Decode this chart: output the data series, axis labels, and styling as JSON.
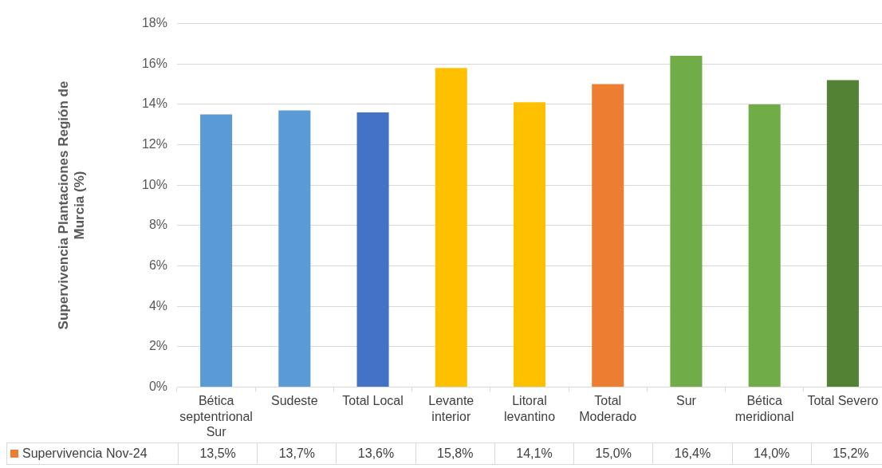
{
  "chart_data": {
    "type": "bar",
    "ylabel": "Supervivencia Plantaciones Región de Murcia (%)",
    "categories": [
      "Bética septentrional Sur",
      "Sudeste",
      "Total Local",
      "Levante interior",
      "Litoral levantino",
      "Total Moderado",
      "Sur",
      "Bética meridional",
      "Total Severo"
    ],
    "series": [
      {
        "name": "Supervivencia Nov-24",
        "color": "#ed7d31",
        "colors": [
          "#5b9bd5",
          "#5b9bd5",
          "#4472c4",
          "#ffc000",
          "#ffc000",
          "#ed7d31",
          "#70ad47",
          "#70ad47",
          "#548235"
        ],
        "values": [
          13.5,
          13.7,
          13.6,
          15.8,
          14.1,
          15.0,
          16.4,
          14.0,
          15.2
        ],
        "value_labels": [
          "13,5%",
          "13,7%",
          "13,6%",
          "15,8%",
          "14,1%",
          "15,0%",
          "16,4%",
          "14,0%",
          "15,2%"
        ]
      }
    ],
    "ylim": [
      0,
      18
    ],
    "yticks": [
      {
        "value": 0,
        "label": "0%"
      },
      {
        "value": 2,
        "label": "2%"
      },
      {
        "value": 4,
        "label": "4%"
      },
      {
        "value": 6,
        "label": "6%"
      },
      {
        "value": 8,
        "label": "8%"
      },
      {
        "value": 10,
        "label": "10%"
      },
      {
        "value": 12,
        "label": "12%"
      },
      {
        "value": 14,
        "label": "14%"
      },
      {
        "value": 16,
        "label": "16%"
      },
      {
        "value": 18,
        "label": "18%"
      }
    ],
    "grid": "y",
    "legend": "bottom"
  }
}
